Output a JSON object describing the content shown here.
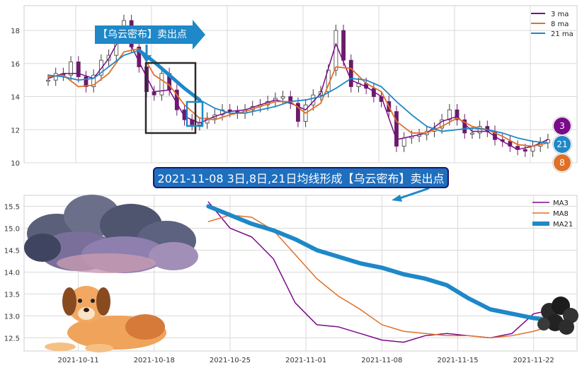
{
  "annotations": {
    "sell_arrow_label": "【乌云密布】卖出点",
    "bottom_callout": "2021-11-08 3日,8日,21日均线形成【乌云密布】卖出点"
  },
  "badges": [
    "3",
    "21",
    "8"
  ],
  "colors": {
    "ma3": "#7b0a8a",
    "ma8": "#e07028",
    "ma21": "#1e88c8",
    "candle_up": "#3a3a3a",
    "candle_down": "#6a1b6a",
    "grid": "#d9d9d9",
    "callout": "#1f6fbf",
    "box": "#2a2a2a"
  },
  "chart_data": [
    {
      "type": "line",
      "title": "",
      "description_of_marks": "price candlesticks with 3/8/21 moving averages",
      "yticks": [
        10,
        12,
        14,
        16,
        18
      ],
      "ylim": [
        10,
        19.5
      ],
      "xlim": [
        0,
        100
      ],
      "legend": [
        "3 ma",
        "8 ma",
        "21 ma"
      ],
      "legend_position": "top-right",
      "grid": true,
      "price_x": [
        0,
        1.5,
        3,
        4.5,
        6,
        7.5,
        9,
        10.5,
        12,
        13.5,
        15,
        16.5,
        18,
        19.5,
        21,
        22.5,
        24,
        25.5,
        27,
        28.5,
        30,
        31.5,
        33,
        34.5,
        36,
        37.5,
        39,
        40.5,
        42,
        43.5,
        45,
        46.5,
        48,
        49.5,
        51,
        52.5,
        54,
        55.5,
        57,
        58.5,
        60,
        61.5,
        63,
        64.5,
        66,
        67.5,
        69,
        70.5,
        72,
        73.5,
        75,
        76.5,
        78,
        79.5,
        81,
        82.5,
        84,
        85.5,
        87,
        88.5,
        90,
        91.5,
        93,
        94.5,
        96,
        97.5,
        99
      ],
      "price": [
        15.0,
        15.4,
        15.3,
        16.1,
        15.2,
        14.6,
        15.3,
        16.2,
        16.5,
        17.8,
        18.6,
        17.0,
        15.8,
        14.3,
        14.1,
        15.4,
        14.4,
        13.2,
        12.6,
        12.3,
        12.4,
        12.7,
        12.9,
        13.2,
        13.1,
        13.0,
        13.2,
        13.4,
        13.5,
        13.7,
        13.9,
        14.0,
        13.6,
        12.5,
        13.5,
        14.1,
        14.3,
        15.6,
        18.0,
        16.2,
        14.6,
        14.8,
        14.5,
        14.0,
        13.7,
        13.1,
        11.0,
        11.5,
        11.6,
        11.7,
        11.9,
        12.1,
        12.6,
        13.2,
        12.6,
        11.8,
        11.8,
        12.2,
        11.9,
        11.4,
        11.3,
        11.0,
        10.8,
        10.7,
        11.0,
        11.2,
        11.4
      ],
      "series": [
        {
          "name": "3 ma",
          "x": [
            0,
            3,
            6,
            9,
            12,
            15,
            18,
            21,
            24,
            27,
            30,
            33,
            36,
            39,
            42,
            45,
            48,
            51,
            54,
            57,
            60,
            63,
            66,
            69,
            72,
            75,
            78,
            81,
            84,
            87,
            90,
            93,
            96,
            99
          ],
          "values": [
            15.1,
            15.4,
            15.4,
            15.1,
            16.3,
            18.0,
            16.1,
            14.3,
            14.4,
            12.8,
            12.4,
            12.8,
            13.1,
            13.2,
            13.5,
            13.8,
            13.6,
            13.2,
            14.2,
            17.2,
            15.0,
            14.6,
            14.0,
            11.4,
            11.6,
            11.8,
            12.5,
            12.8,
            11.9,
            11.9,
            11.3,
            10.8,
            11.0,
            11.4
          ]
        },
        {
          "name": "8 ma",
          "x": [
            0,
            3,
            6,
            9,
            12,
            15,
            18,
            21,
            24,
            27,
            30,
            33,
            36,
            39,
            42,
            45,
            48,
            51,
            54,
            57,
            60,
            63,
            66,
            69,
            72,
            75,
            78,
            81,
            84,
            87,
            90,
            93,
            96,
            99
          ],
          "values": [
            15.2,
            15.3,
            14.6,
            14.7,
            15.4,
            16.7,
            16.9,
            15.3,
            14.7,
            13.5,
            12.7,
            12.6,
            12.9,
            13.1,
            13.4,
            13.7,
            13.7,
            13.0,
            13.6,
            15.8,
            15.7,
            14.8,
            14.3,
            12.5,
            11.8,
            11.8,
            12.2,
            12.7,
            12.2,
            12.0,
            11.6,
            11.1,
            11.0,
            11.2
          ]
        },
        {
          "name": "21 ma",
          "x": [
            0,
            3,
            6,
            9,
            12,
            15,
            18,
            21,
            24,
            27,
            30,
            33,
            36,
            39,
            42,
            45,
            48,
            51,
            54,
            57,
            60,
            63,
            66,
            69,
            72,
            75,
            78,
            81,
            84,
            87,
            90,
            93,
            96,
            99
          ],
          "values": [
            15.3,
            15.2,
            15.0,
            15.1,
            15.8,
            16.5,
            16.8,
            16.1,
            15.3,
            14.5,
            13.8,
            13.3,
            13.0,
            13.0,
            13.2,
            13.4,
            13.7,
            13.8,
            14.0,
            14.5,
            15.1,
            15.0,
            14.6,
            13.7,
            12.9,
            12.2,
            11.9,
            12.0,
            12.1,
            12.0,
            11.8,
            11.5,
            11.3,
            11.2
          ]
        }
      ]
    },
    {
      "type": "line",
      "title": "",
      "xticks": [
        "2021-10-11",
        "2021-10-18",
        "2021-10-25",
        "2021-11-01",
        "2021-11-08",
        "2021-11-15",
        "2021-11-22"
      ],
      "yticks": [
        "12.5",
        "13.0",
        "13.5",
        "14.0",
        "14.5",
        "15.0",
        "15.5"
      ],
      "ylim": [
        12.2,
        15.75
      ],
      "xlim": [
        "2021-10-06",
        "2021-11-26"
      ],
      "legend": [
        "MA3",
        "MA8",
        "MA21"
      ],
      "legend_position": "top-right",
      "grid": true,
      "series": [
        {
          "name": "MA3",
          "x": [
            "2021-10-23",
            "2021-10-25",
            "2021-10-27",
            "2021-10-29",
            "2021-10-31",
            "2021-11-02",
            "2021-11-04",
            "2021-11-06",
            "2021-11-08",
            "2021-11-10",
            "2021-11-12",
            "2021-11-14",
            "2021-11-16",
            "2021-11-18",
            "2021-11-20",
            "2021-11-22",
            "2021-11-24"
          ],
          "values": [
            15.6,
            15.0,
            14.8,
            14.3,
            13.3,
            12.8,
            12.75,
            12.6,
            12.45,
            12.4,
            12.55,
            12.6,
            12.55,
            12.5,
            12.6,
            13.05,
            13.15
          ]
        },
        {
          "name": "MA8",
          "x": [
            "2021-10-23",
            "2021-10-25",
            "2021-10-27",
            "2021-10-29",
            "2021-10-31",
            "2021-11-02",
            "2021-11-04",
            "2021-11-06",
            "2021-11-08",
            "2021-11-10",
            "2021-11-12",
            "2021-11-14",
            "2021-11-16",
            "2021-11-18",
            "2021-11-20",
            "2021-11-22",
            "2021-11-24"
          ],
          "values": [
            15.15,
            15.3,
            15.25,
            14.95,
            14.4,
            13.85,
            13.45,
            13.15,
            12.8,
            12.65,
            12.6,
            12.55,
            12.55,
            12.5,
            12.55,
            12.65,
            12.8
          ]
        },
        {
          "name": "MA21",
          "x": [
            "2021-10-23",
            "2021-10-25",
            "2021-10-27",
            "2021-10-29",
            "2021-10-31",
            "2021-11-02",
            "2021-11-04",
            "2021-11-06",
            "2021-11-08",
            "2021-11-10",
            "2021-11-12",
            "2021-11-14",
            "2021-11-16",
            "2021-11-18",
            "2021-11-20",
            "2021-11-22",
            "2021-11-24"
          ],
          "values": [
            15.5,
            15.3,
            15.1,
            14.95,
            14.75,
            14.5,
            14.35,
            14.2,
            14.1,
            13.95,
            13.85,
            13.7,
            13.4,
            13.15,
            13.05,
            12.95,
            12.9
          ]
        }
      ]
    }
  ]
}
